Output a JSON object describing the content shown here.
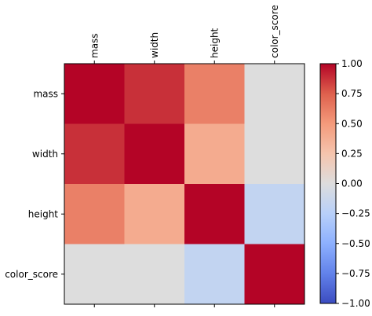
{
  "chart_data": {
    "type": "heatmap",
    "title": "",
    "rows": [
      "mass",
      "width",
      "height",
      "color_score"
    ],
    "columns": [
      "mass",
      "width",
      "height",
      "color_score"
    ],
    "values": [
      [
        1.0,
        0.88,
        0.61,
        0.0
      ],
      [
        0.88,
        1.0,
        0.4,
        0.0
      ],
      [
        0.61,
        0.4,
        1.0,
        -0.18
      ],
      [
        0.0,
        0.0,
        -0.18,
        1.0
      ]
    ],
    "colormap": "coolwarm",
    "color_range": [
      -1.0,
      1.0
    ],
    "colorbar": {
      "ticks": [
        -1.0,
        -0.75,
        -0.5,
        -0.25,
        0.0,
        0.25,
        0.5,
        0.75,
        1.0
      ],
      "tick_labels": [
        "−1.00",
        "−0.75",
        "−0.50",
        "−0.25",
        "0.00",
        "0.25",
        "0.50",
        "0.75",
        "1.00"
      ],
      "placement": "right"
    },
    "x_tick_labels_position": "top",
    "x_tick_labels_rotation": "vertical",
    "grid": false
  }
}
